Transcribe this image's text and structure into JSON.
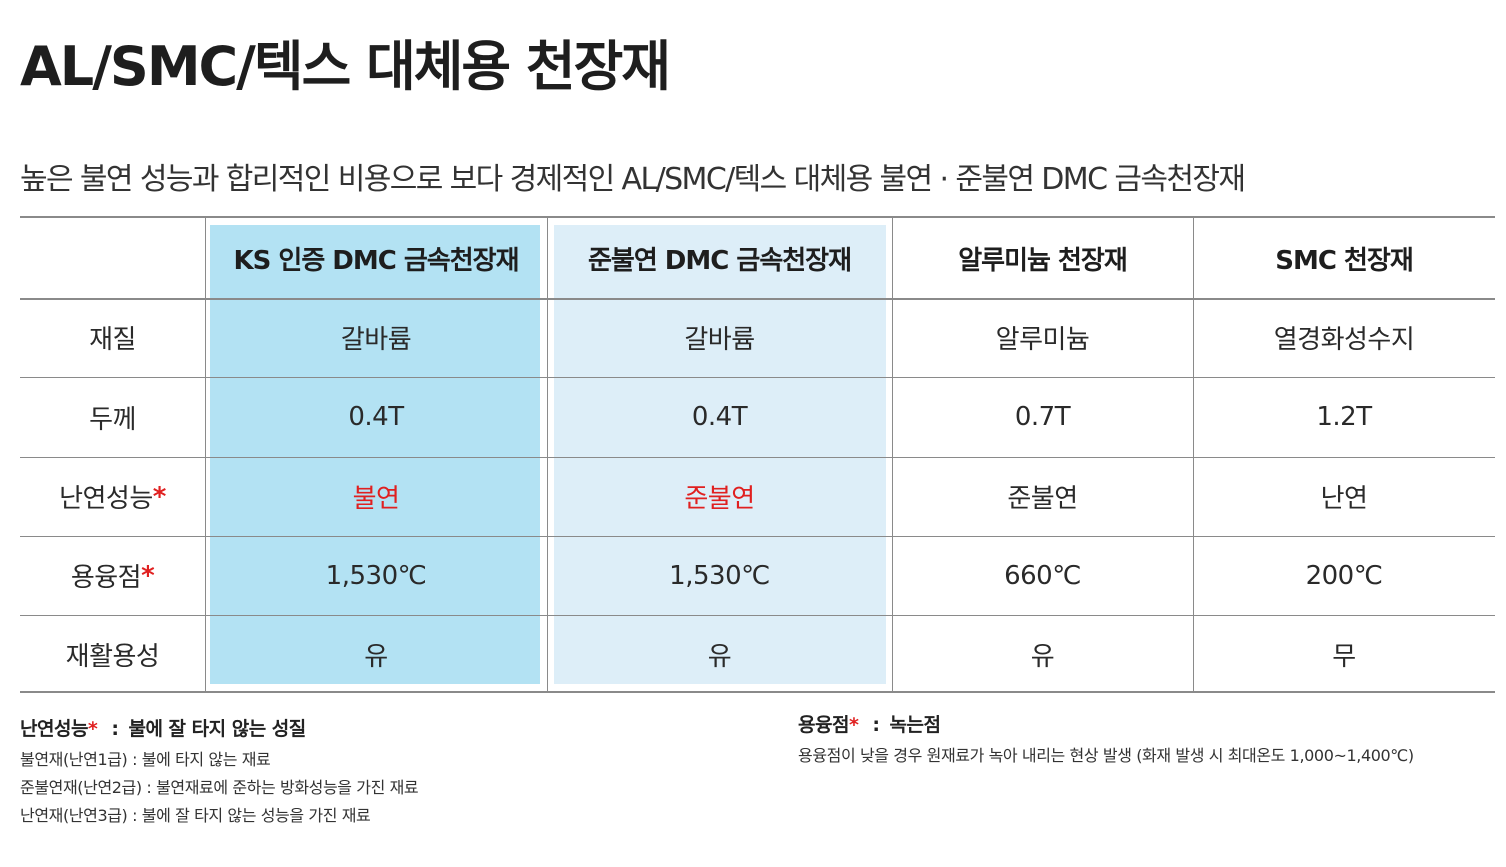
{
  "title": "AL/SMC/텍스 대체용 천장재",
  "subtitle": "높은 불연 성능과 합리적인 비용으로 보다 경제적인 AL/SMC/텍스 대체용 불연 · 준불연 DMC 금속천장재",
  "colors": {
    "highlight_col1_bg": "#b3e2f3",
    "highlight_col2_bg": "#ddeef8",
    "accent_red": "#e02020",
    "rule_gray": "#8a8a8a"
  },
  "table": {
    "headers": [
      "",
      "KS 인증 DMC 금속천장재",
      "준불연 DMC 금속천장재",
      "알루미늄 천장재",
      "SMC 천장재"
    ],
    "rows": [
      {
        "label": "재질",
        "cells": [
          "갈바륨",
          "갈바륨",
          "알루미늄",
          "열경화성수지"
        ]
      },
      {
        "label": "두께",
        "cells": [
          "0.4T",
          "0.4T",
          "0.7T",
          "1.2T"
        ]
      },
      {
        "label": "난연성능",
        "marker": "*",
        "cells": [
          "불연",
          "준불연",
          "준불연",
          "난연"
        ]
      },
      {
        "label": "용융점",
        "marker": "*",
        "cells": [
          "1,530℃",
          "1,530℃",
          "660℃",
          "200℃"
        ]
      },
      {
        "label": "재활용성",
        "cells": [
          "유",
          "유",
          "유",
          "무"
        ]
      }
    ]
  },
  "legend_left": {
    "title": "난연성능",
    "marker": "*",
    "sep": ":",
    "desc": "불에 잘 타지 않는 성질",
    "lines": [
      "불연재(난연1급) : 불에 타지 않는 재료",
      "준불연재(난연2급) : 불연재료에 준하는 방화성능을 가진 재료",
      "난연재(난연3급) : 불에 잘 타지 않는 성능을 가진 재료"
    ]
  },
  "legend_right": {
    "title": "용융점",
    "marker": "*",
    "sep": ":",
    "desc": "녹는점",
    "lines": [
      "용융점이 낮을 경우 원재료가 녹아 내리는 현상 발생 (화재 발생 시 최대온도 1,000~1,400℃)"
    ]
  }
}
